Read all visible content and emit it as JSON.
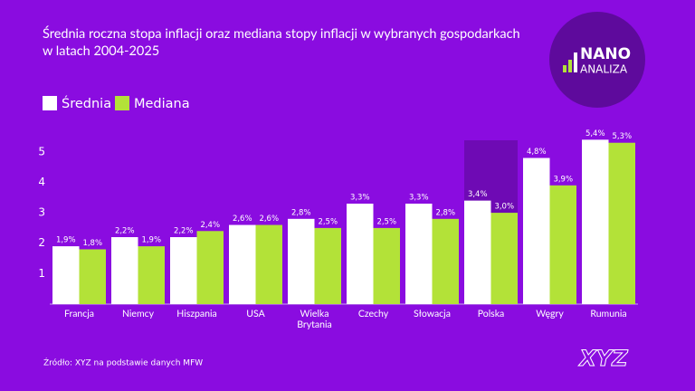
{
  "chart_data": {
    "type": "bar",
    "title": "Średnia roczna stopa inflacji oraz mediana stopy inflacji w wybranych gospodarkach w latach 2004-2025",
    "categories": [
      "Francja",
      "Niemcy",
      "Hiszpania",
      "USA",
      "Wielka Brytania",
      "Czechy",
      "Słowacja",
      "Polska",
      "Węgry",
      "Rumunia"
    ],
    "series": [
      {
        "name": "Średnia",
        "color": "#ffffff",
        "values": [
          1.9,
          2.2,
          2.2,
          2.6,
          2.8,
          3.3,
          3.3,
          3.4,
          4.8,
          5.4
        ],
        "value_labels": [
          "1,9%",
          "2,2%",
          "2,2%",
          "2,6%",
          "2,8%",
          "3,3%",
          "3,3%",
          "3,4%",
          "4,8%",
          "5,4%"
        ]
      },
      {
        "name": "Mediana",
        "color": "#b3e238",
        "values": [
          1.8,
          1.9,
          2.4,
          2.6,
          2.5,
          2.5,
          2.8,
          3.0,
          3.9,
          5.3
        ],
        "value_labels": [
          "1,8%",
          "1,9%",
          "2,4%",
          "2,6%",
          "2,5%",
          "2,5%",
          "2,8%",
          "3,0%",
          "3,9%",
          "5,3%"
        ]
      }
    ],
    "ylim": [
      0,
      5.5
    ],
    "yticks": [
      1,
      2,
      3,
      4,
      5
    ],
    "grid": false,
    "source": "Źródło: XYZ na podstawie danych MFW",
    "logo": {
      "top": "NANO",
      "bottom": "ANALIZA"
    },
    "brand": "XYZ"
  }
}
